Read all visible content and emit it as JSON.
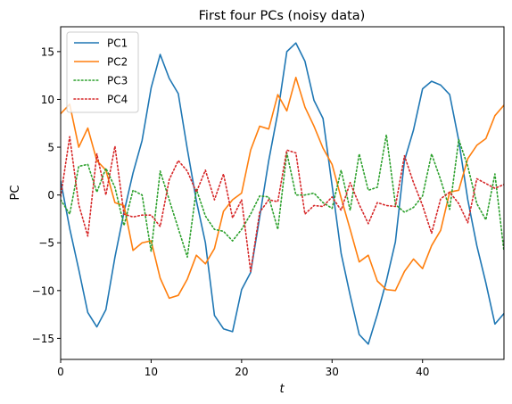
{
  "chart_data": {
    "type": "line",
    "title": "First four PCs (noisy data)",
    "xlabel": "t",
    "ylabel": "PC",
    "xlim": [
      0,
      49
    ],
    "ylim": [
      -17.2,
      17.6
    ],
    "x_ticks": [
      "0",
      "10",
      "20",
      "30",
      "40"
    ],
    "y_ticks": [
      "−15",
      "−10",
      "−5",
      "0",
      "5",
      "10",
      "15"
    ],
    "x_tick_values": [
      0,
      10,
      20,
      30,
      40
    ],
    "y_tick_values": [
      -15,
      -10,
      -5,
      0,
      5,
      10,
      15
    ],
    "grid": false,
    "legend_position": "top-left",
    "x": [
      0,
      1,
      2,
      3,
      4,
      5,
      6,
      7,
      8,
      9,
      10,
      11,
      12,
      13,
      14,
      15,
      16,
      17,
      18,
      19,
      20,
      21,
      22,
      23,
      24,
      25,
      26,
      27,
      28,
      29,
      30,
      31,
      32,
      33,
      34,
      35,
      36,
      37,
      38,
      39,
      40,
      41,
      42,
      43,
      44,
      45,
      46,
      47,
      48,
      49
    ],
    "series": [
      {
        "name": "PC1",
        "color": "#1f77b4",
        "style": "solid",
        "values": [
          1.5,
          -3.5,
          -7.8,
          -12.3,
          -13.8,
          -12.0,
          -6.5,
          -1.8,
          2.3,
          5.7,
          11.2,
          14.7,
          12.2,
          10.6,
          4.8,
          -0.6,
          -5.0,
          -12.6,
          -14.0,
          -14.3,
          -9.9,
          -8.1,
          -2.3,
          3.6,
          8.6,
          15.0,
          15.9,
          14.0,
          9.9,
          8.0,
          1.0,
          -6.1,
          -10.5,
          -14.6,
          -15.6,
          -12.5,
          -9.0,
          -4.9,
          3.6,
          6.8,
          11.1,
          11.9,
          11.5,
          10.5,
          5.7,
          -0.5,
          -5.3,
          -9.2,
          -13.5,
          -12.4
        ]
      },
      {
        "name": "PC2",
        "color": "#ff7f0e",
        "style": "solid",
        "values": [
          8.5,
          9.5,
          5.0,
          7.0,
          3.6,
          2.6,
          -0.8,
          -1.1,
          -5.8,
          -5.0,
          -4.8,
          -8.7,
          -10.8,
          -10.5,
          -8.8,
          -6.3,
          -7.2,
          -5.6,
          -1.7,
          -0.5,
          0.2,
          4.7,
          7.2,
          6.9,
          10.5,
          8.8,
          12.3,
          9.2,
          7.2,
          4.9,
          3.2,
          -0.3,
          -3.6,
          -7.0,
          -6.3,
          -9.0,
          -9.9,
          -10.0,
          -8.0,
          -6.7,
          -7.7,
          -5.3,
          -3.7,
          0.3,
          0.5,
          3.8,
          5.2,
          5.9,
          8.3,
          9.4
        ]
      },
      {
        "name": "PC3",
        "color": "#2ca02c",
        "style": "dotted",
        "values": [
          -0.5,
          -2.0,
          3.0,
          3.2,
          0.3,
          2.8,
          0.8,
          -3.2,
          0.5,
          0.0,
          -5.9,
          2.5,
          -0.5,
          -3.5,
          -6.5,
          0.6,
          -2.2,
          -3.6,
          -3.8,
          -4.8,
          -3.6,
          -2.0,
          -0.1,
          -0.2,
          -3.6,
          4.4,
          0.0,
          0.0,
          0.2,
          -0.8,
          -1.4,
          2.6,
          -1.6,
          4.3,
          0.5,
          0.8,
          6.3,
          -1.0,
          -1.8,
          -1.3,
          -0.1,
          4.3,
          1.6,
          -1.5,
          5.8,
          3.0,
          -0.9,
          -2.6,
          2.2,
          -5.9
        ]
      },
      {
        "name": "PC4",
        "color": "#d62728",
        "style": "dotted",
        "values": [
          -0.2,
          6.1,
          -1.0,
          -4.3,
          4.3,
          0.0,
          5.1,
          -2.0,
          -2.3,
          -2.1,
          -2.1,
          -3.3,
          1.6,
          3.6,
          2.5,
          0.3,
          2.6,
          -0.5,
          2.2,
          -2.4,
          -0.5,
          -8.0,
          -1.8,
          -0.5,
          -0.7,
          4.7,
          4.4,
          -2.0,
          -1.1,
          -1.2,
          -0.2,
          -1.6,
          1.3,
          -1.0,
          -3.0,
          -0.8,
          -1.1,
          -1.2,
          4.1,
          1.3,
          -1.1,
          -4.0,
          -0.4,
          0.3,
          -0.9,
          -2.9,
          1.7,
          1.2,
          0.7,
          1.1
        ]
      }
    ]
  }
}
